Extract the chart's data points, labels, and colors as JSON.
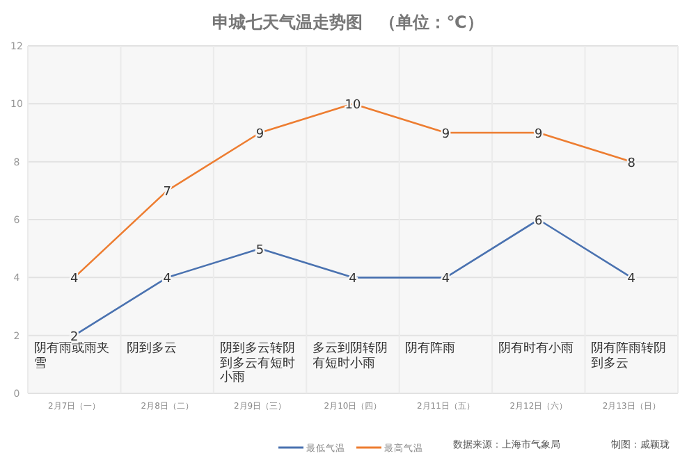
{
  "chart_data": {
    "type": "line",
    "title": "申城七天气温走势图　（单位：℃）",
    "categories": [
      "2月7日（一）",
      "2月8日（二）",
      "2月9日（三）",
      "2月10日（四）",
      "2月11日（五）",
      "2月12日（六）",
      "2月13日（日）"
    ],
    "series": [
      {
        "name": "最低气温",
        "color": "#4a72b0",
        "values": [
          2,
          4,
          5,
          4,
          4,
          6,
          4
        ]
      },
      {
        "name": "最高气温",
        "color": "#ed7d31",
        "values": [
          4,
          7,
          9,
          10,
          9,
          9,
          8
        ]
      }
    ],
    "ylim": [
      0,
      12
    ],
    "yticks": [
      0,
      2,
      4,
      6,
      8,
      10,
      12
    ],
    "grid": true,
    "legend": "bottom",
    "data_labels": true,
    "marker": "none",
    "annotations": [
      "阴有雨或雨夹雪",
      "阴到多云",
      "阴到多云转阴到多云有短时小雨",
      "多云到阴转阴有短时小雨",
      "阴有阵雨",
      "阴有时有小雨",
      "阴有阵雨转阴到多云",
      "数据来源：上海市气象局",
      "制图：戚颖珑"
    ]
  }
}
